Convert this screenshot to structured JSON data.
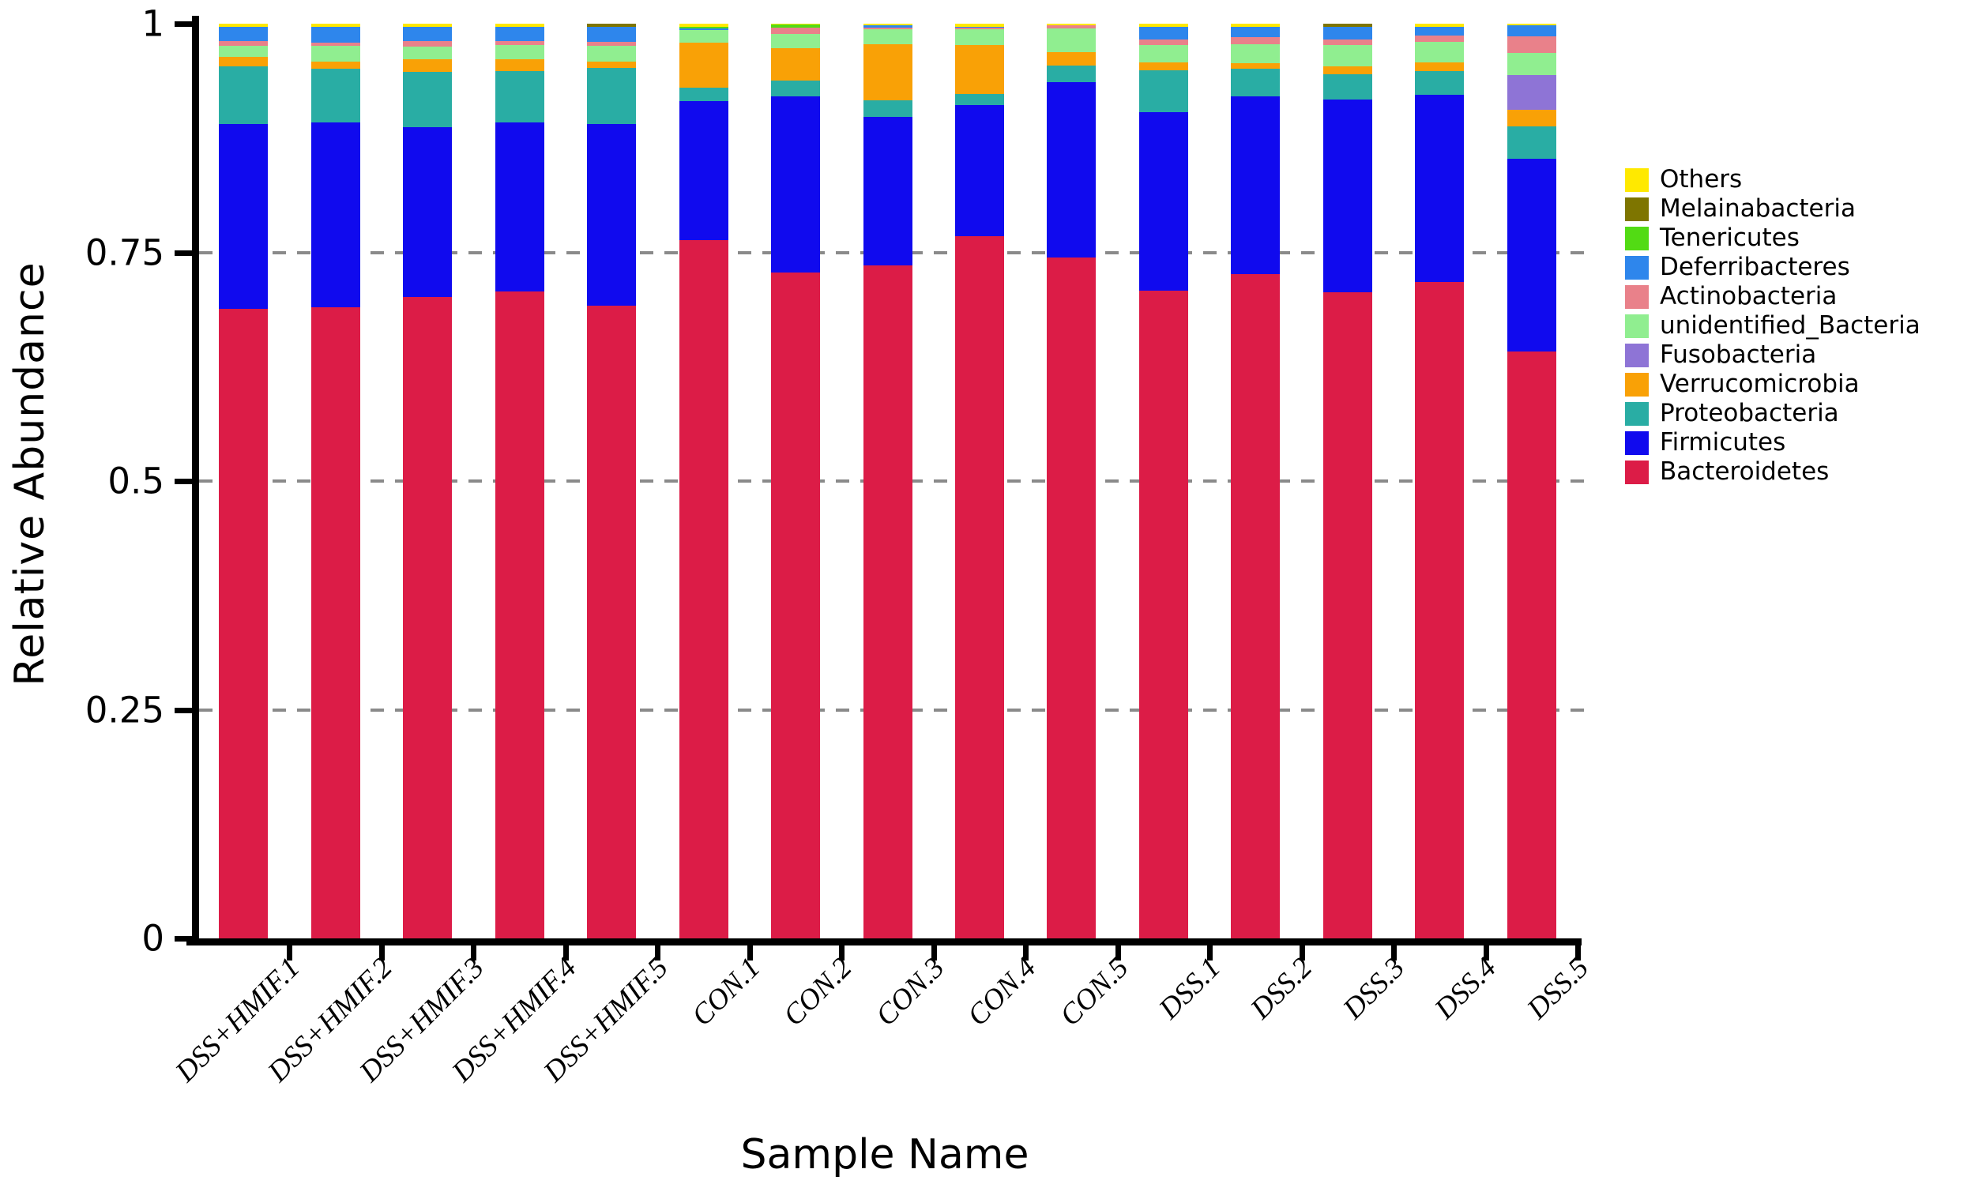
{
  "chart_data": {
    "type": "bar",
    "stacked": true,
    "title": "",
    "xlabel": "Sample Name",
    "ylabel": "Relative Abundance",
    "ylim": [
      0,
      1
    ],
    "yticks": [
      {
        "value": 1,
        "label": "1"
      },
      {
        "value": 0.75,
        "label": "0.75"
      },
      {
        "value": 0.5,
        "label": "0.5"
      },
      {
        "value": 0.25,
        "label": "0.25"
      },
      {
        "value": 0,
        "label": "0"
      }
    ],
    "gridlines": {
      "values": [
        0.25,
        0.5,
        0.75
      ],
      "style": "dashed",
      "color": "#8a8a8a"
    },
    "categories": [
      "DSS+HMIF.1",
      "DSS+HMIF.2",
      "DSS+HMIF.3",
      "DSS+HMIF.4",
      "DSS+HMIF.5",
      "CON.1",
      "CON.2",
      "CON.3",
      "CON.4",
      "CON.5",
      "DSS.1",
      "DSS.2",
      "DSS.3",
      "DSS.4",
      "DSS.5"
    ],
    "series_order": "bottom_to_top",
    "series": [
      {
        "name": "Bacteroidetes",
        "color": "#DC1C47",
        "values": [
          0.688,
          0.69,
          0.701,
          0.707,
          0.692,
          0.763,
          0.728,
          0.736,
          0.768,
          0.744,
          0.708,
          0.726,
          0.706,
          0.718,
          0.642
        ]
      },
      {
        "name": "Firmicutes",
        "color": "#100AEE",
        "values": [
          0.202,
          0.202,
          0.186,
          0.185,
          0.198,
          0.152,
          0.193,
          0.162,
          0.143,
          0.192,
          0.195,
          0.195,
          0.211,
          0.204,
          0.21
        ]
      },
      {
        "name": "Proteobacteria",
        "color": "#29ADA4",
        "values": [
          0.063,
          0.059,
          0.06,
          0.056,
          0.062,
          0.015,
          0.017,
          0.018,
          0.012,
          0.018,
          0.046,
          0.03,
          0.028,
          0.026,
          0.036
        ]
      },
      {
        "name": "Verrucomicrobia",
        "color": "#F9A106",
        "values": [
          0.011,
          0.008,
          0.014,
          0.013,
          0.007,
          0.049,
          0.035,
          0.062,
          0.054,
          0.015,
          0.009,
          0.006,
          0.008,
          0.01,
          0.018
        ]
      },
      {
        "name": "Fusobacteria",
        "color": "#8E74D6",
        "values": [
          0,
          0,
          0,
          0,
          0,
          0,
          0,
          0,
          0,
          0,
          0,
          0,
          0,
          0,
          0.038
        ]
      },
      {
        "name": "unidentified_Bacteria",
        "color": "#90EE90",
        "values": [
          0.012,
          0.017,
          0.014,
          0.016,
          0.017,
          0.014,
          0.016,
          0.016,
          0.017,
          0.026,
          0.019,
          0.021,
          0.024,
          0.022,
          0.024
        ]
      },
      {
        "name": "Actinobacteria",
        "color": "#E9818A",
        "values": [
          0.005,
          0.003,
          0.006,
          0.004,
          0.004,
          0,
          0.007,
          0.002,
          0.002,
          0.003,
          0.006,
          0.007,
          0.006,
          0.007,
          0.018
        ]
      },
      {
        "name": "Deferribacteres",
        "color": "#2E86EC",
        "values": [
          0.016,
          0.018,
          0.016,
          0.016,
          0.017,
          0.002,
          0,
          0.002,
          0.001,
          0,
          0.014,
          0.012,
          0.014,
          0.01,
          0.012
        ]
      },
      {
        "name": "Tenericutes",
        "color": "#52DB14",
        "values": [
          0,
          0,
          0,
          0,
          0,
          0.002,
          0.003,
          0,
          0,
          0,
          0,
          0,
          0,
          0,
          0
        ]
      },
      {
        "name": "Melainabacteria",
        "color": "#7E7500",
        "values": [
          0,
          0,
          0,
          0,
          0.003,
          0,
          0,
          0,
          0,
          0,
          0,
          0,
          0.003,
          0,
          0
        ]
      },
      {
        "name": "Others",
        "color": "#FFE900",
        "values": [
          0.003,
          0.003,
          0.003,
          0.003,
          0,
          0.003,
          0.001,
          0.002,
          0.003,
          0.002,
          0.003,
          0.003,
          0,
          0.003,
          0.002
        ]
      }
    ],
    "legend": {
      "position": "right",
      "items_top_to_bottom": [
        "Others",
        "Melainabacteria",
        "Tenericutes",
        "Deferribacteres",
        "Actinobacteria",
        "unidentified_Bacteria",
        "Fusobacteria",
        "Verrucomicrobia",
        "Proteobacteria",
        "Firmicutes",
        "Bacteroidetes"
      ]
    }
  }
}
